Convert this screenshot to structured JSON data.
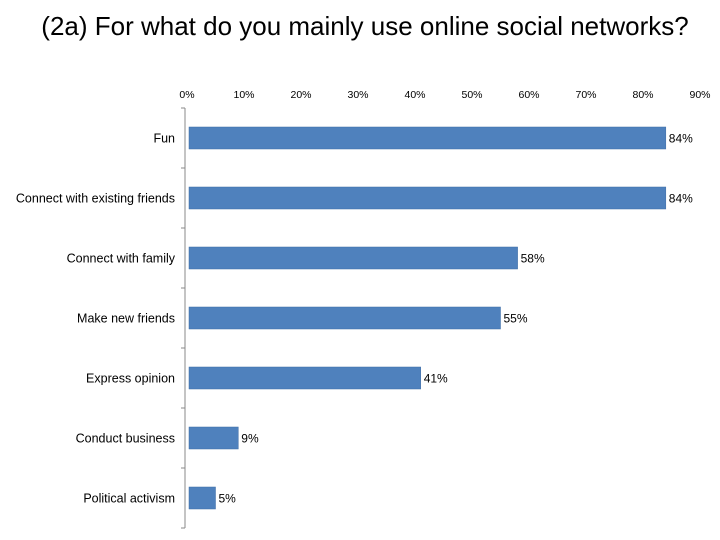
{
  "chart_data": {
    "type": "bar",
    "orientation": "horizontal",
    "title": "(2a) For what do you mainly use online social networks?",
    "categories": [
      "Fun",
      "Connect with existing friends",
      "Connect with family",
      "Make new friends",
      "Express opinion",
      "Conduct business",
      "Political activism"
    ],
    "values": [
      84,
      84,
      58,
      55,
      41,
      9,
      5
    ],
    "value_labels": [
      "84%",
      "84%",
      "58%",
      "55%",
      "41%",
      "9%",
      "5%"
    ],
    "xlim": [
      0,
      90
    ],
    "xticks": [
      0,
      10,
      20,
      30,
      40,
      50,
      60,
      70,
      80,
      90
    ],
    "xtick_labels": [
      "0%",
      "10%",
      "20%",
      "30%",
      "40%",
      "50%",
      "60%",
      "70%",
      "80%",
      "90%"
    ],
    "xaxis_position": "top",
    "grid": false,
    "legend": "none",
    "bar_color": "#4f81bd"
  }
}
